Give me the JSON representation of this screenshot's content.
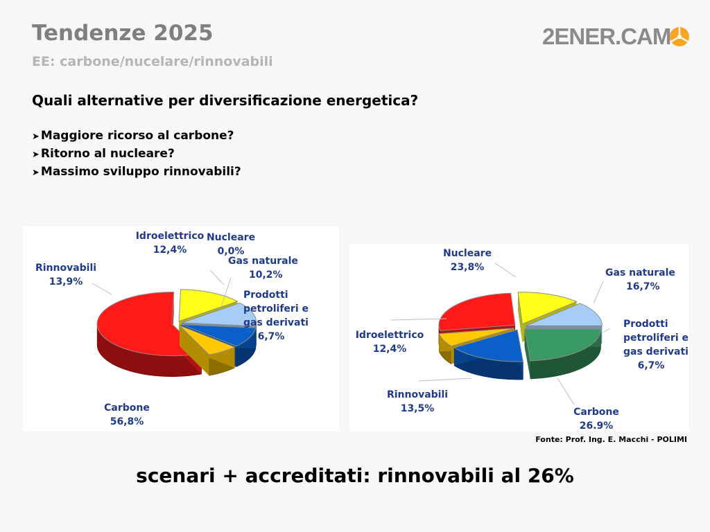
{
  "header": {
    "title": "Tendenze 2025",
    "subtitle": "EE: carbone/nucelare/rinnovabili",
    "logo_text": "2ENER.CAM"
  },
  "content": {
    "question": "Quali alternative per diversificazione energetica?",
    "bullet_symbol": "➤",
    "bullets": [
      "Maggiore ricorso al carbone?",
      "Ritorno al nucleare?",
      "Massimo sviluppo rinnovabili?"
    ]
  },
  "source": "Fonte: Prof. Ing. E. Macchi - POLIMI",
  "conclusion": "scenari + accreditati: rinnovabili al 26%",
  "colors": {
    "title": "#7f7f7f",
    "subtitle": "#b5b5b5",
    "label_text": "#1f3a8a",
    "logo_orange": "#f5a623"
  },
  "chart_data": [
    {
      "type": "pie",
      "style": "3d-exploded",
      "slices": [
        {
          "name": "Nucleare",
          "value": 0.0,
          "label_value": "0,0%",
          "color": "#3a9a63"
        },
        {
          "name": "Gas naturale",
          "value": 10.2,
          "label_value": "10,2%",
          "color": "#0a5fc8"
        },
        {
          "name": "Prodotti petroliferi e gas derivati",
          "label_lines": [
            "Prodotti",
            "petroliferi e",
            "gas derivati"
          ],
          "value": 6.7,
          "label_value": "6,7%",
          "color": "#ffc800"
        },
        {
          "name": "Carbone",
          "value": 56.8,
          "label_value": "56,8%",
          "color": "#ff1a1a"
        },
        {
          "name": "Rinnovabili",
          "value": 13.9,
          "label_value": "13,9%",
          "color": "#ffff1a"
        },
        {
          "name": "Idroelettrico",
          "value": 12.4,
          "label_value": "12,4%",
          "color": "#a6cdf5"
        }
      ]
    },
    {
      "type": "pie",
      "style": "3d-exploded",
      "slices": [
        {
          "name": "Nucleare",
          "value": 23.8,
          "label_value": "23,8%",
          "color": "#3a9a63"
        },
        {
          "name": "Gas naturale",
          "value": 16.7,
          "label_value": "16,7%",
          "color": "#0a5fc8"
        },
        {
          "name": "Prodotti petroliferi e gas derivati",
          "label_lines": [
            "Prodotti",
            "petroliferi e",
            "gas derivati"
          ],
          "value": 6.7,
          "label_value": "6,7%",
          "color": "#ffc800"
        },
        {
          "name": "Carbone",
          "value": 26.9,
          "label_value": "26.9%",
          "color": "#ff1a1a"
        },
        {
          "name": "Rinnovabili",
          "value": 13.5,
          "label_value": "13,5%",
          "color": "#ffff1a"
        },
        {
          "name": "Idroelettrico",
          "value": 12.4,
          "label_value": "12,4%",
          "color": "#a6cdf5"
        }
      ]
    }
  ]
}
